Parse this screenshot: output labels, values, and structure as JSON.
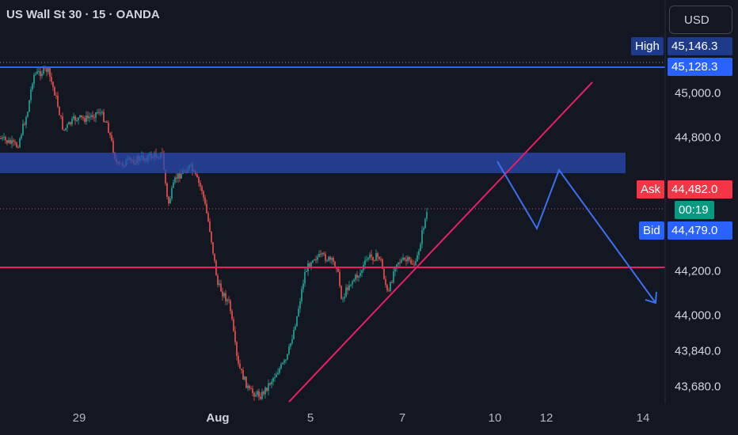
{
  "header": {
    "title": "US Wall St 30 · 15 · OANDA",
    "currency_button": "USD"
  },
  "colors": {
    "background": "#131722",
    "up_candle": "#26a69a",
    "down_candle": "#ef5350",
    "zone": "#2a4bb0",
    "trendline": "#e91e63",
    "projection": "#3a6ff0",
    "high_line": "#2962ff"
  },
  "price_tags": {
    "high_label": "High",
    "high_value": "45,146.3",
    "line_value": "45,128.3",
    "ask_label": "Ask",
    "ask_value": "44,482.0",
    "countdown": "00:19",
    "bid_label": "Bid",
    "bid_value": "44,479.0"
  },
  "chart_data": {
    "type": "candlestick",
    "title": "US Wall St 30 · 15 · OANDA",
    "y_axis_labels": [
      "45,000.0",
      "44,800.0",
      "44,200.0",
      "44,000.0",
      "43,840.0",
      "43,680.0"
    ],
    "y_axis_values": [
      45000,
      44800,
      44200,
      44000,
      43840,
      43680
    ],
    "x_axis_labels": [
      "29",
      "Aug",
      "5",
      "7",
      "10",
      "12",
      "14"
    ],
    "ylim": [
      43640,
      45240
    ],
    "series": [
      {
        "x": "29",
        "y": 44840
      },
      {
        "x": "30",
        "y": 45090
      },
      {
        "x": "31",
        "y": 44700
      },
      {
        "x": "Aug",
        "y": 44420
      },
      {
        "x": "2",
        "y": 43690
      },
      {
        "x": "5",
        "y": 44230
      },
      {
        "x": "6",
        "y": 44150
      },
      {
        "x": "7",
        "y": 44230
      },
      {
        "x": "8",
        "y": 44482
      }
    ],
    "levels": {
      "high_line": 45128.3,
      "support_line": 44220,
      "supply_zone": [
        44620,
        44720
      ]
    },
    "projection_path": [
      44650,
      44300,
      44630,
      44040
    ],
    "grid": false,
    "legend": "none"
  }
}
